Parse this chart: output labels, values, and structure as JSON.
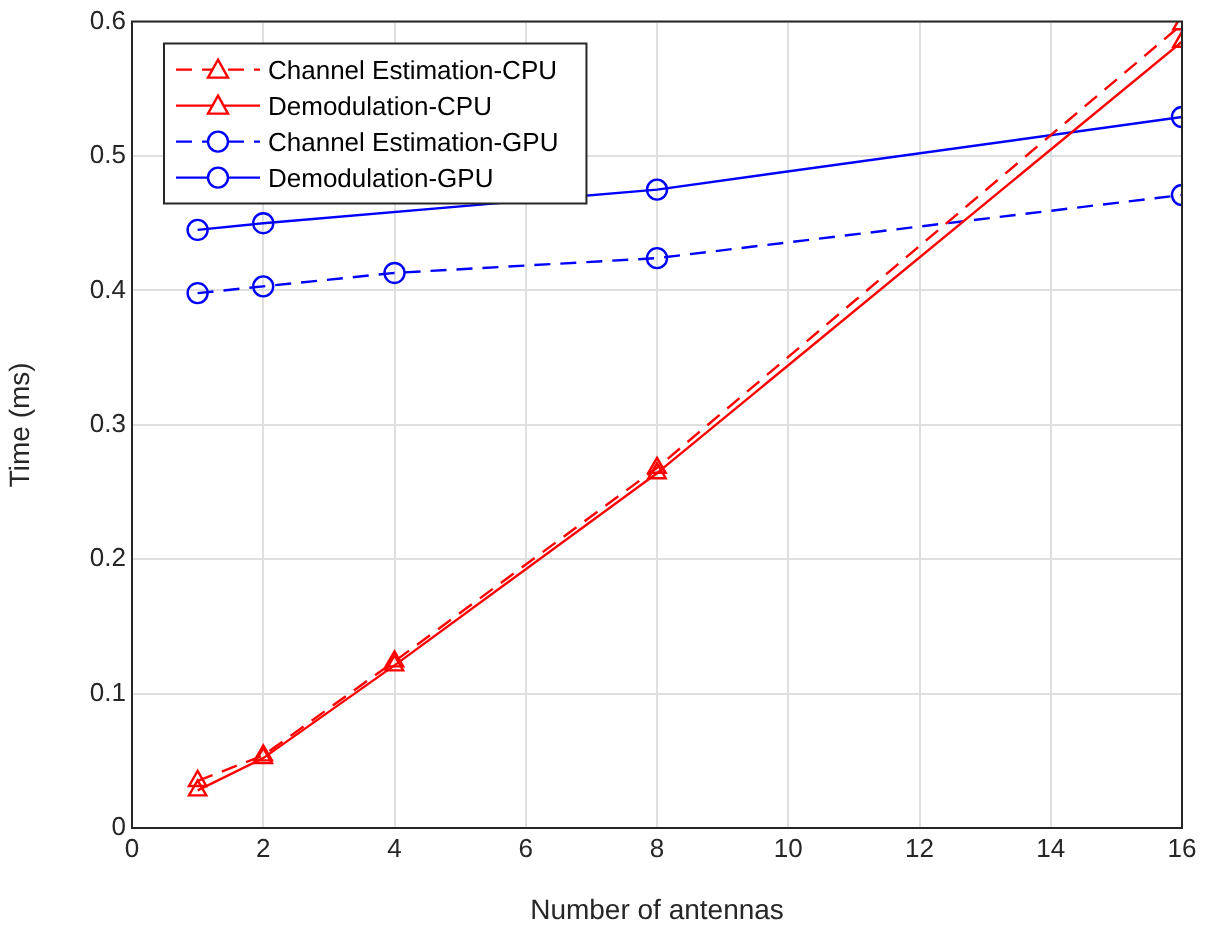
{
  "chart_data": {
    "type": "line",
    "xlabel": "Number of antennas",
    "ylabel": "Time (ms)",
    "x": [
      1,
      2,
      4,
      8,
      16
    ],
    "series": [
      {
        "name": "Channel Estimation-CPU",
        "color": "#ff0000",
        "marker": "triangle",
        "line_style": "dashed",
        "values": [
          0.035,
          0.054,
          0.124,
          0.268,
          0.598
        ]
      },
      {
        "name": "Demodulation-CPU",
        "color": "#ff0000",
        "marker": "triangle",
        "line_style": "solid",
        "values": [
          0.028,
          0.052,
          0.121,
          0.264,
          0.585
        ]
      },
      {
        "name": "Channel Estimation-GPU",
        "color": "#0000ff",
        "marker": "circle",
        "line_style": "dashed",
        "values": [
          0.398,
          0.403,
          0.413,
          0.424,
          0.471
        ]
      },
      {
        "name": "Demodulation-GPU",
        "color": "#0000ff",
        "marker": "circle",
        "line_style": "solid",
        "values": [
          0.445,
          0.45,
          null,
          0.475,
          0.529
        ]
      }
    ],
    "xlim": [
      0,
      16
    ],
    "xticks": [
      0,
      2,
      4,
      6,
      8,
      10,
      12,
      14,
      16
    ],
    "ylim": [
      0,
      0.6
    ],
    "yticks": [
      0,
      0.1,
      0.2,
      0.3,
      0.4,
      0.5,
      0.6
    ],
    "grid": true,
    "legend": "top left"
  }
}
